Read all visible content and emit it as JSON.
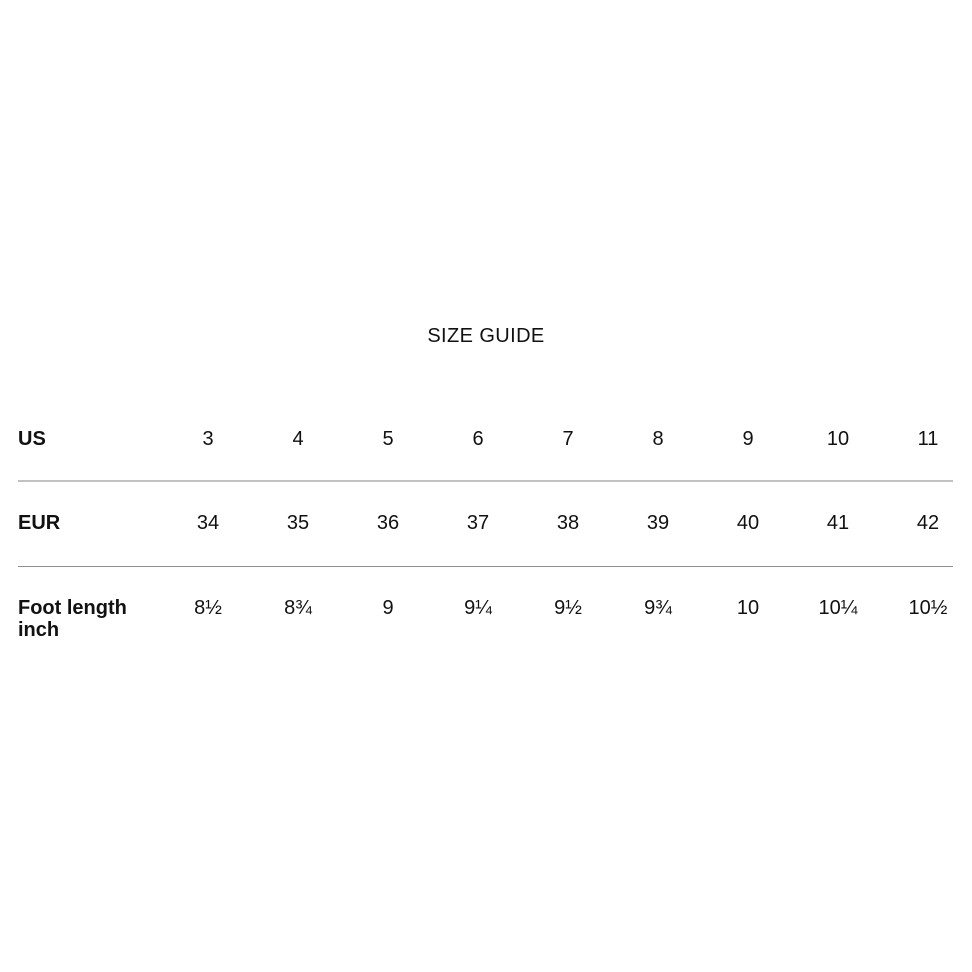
{
  "title": "SIZE GUIDE",
  "colors": {
    "background": "#ffffff",
    "text": "#111111",
    "divider_light": "#c2c2c2",
    "divider_dark": "#8e8e8e"
  },
  "size_table": {
    "rows": [
      {
        "label": "US",
        "values": [
          "3",
          "4",
          "5",
          "6",
          "7",
          "8",
          "9",
          "10",
          "11"
        ]
      },
      {
        "label": "EUR",
        "values": [
          "34",
          "35",
          "36",
          "37",
          "38",
          "39",
          "40",
          "41",
          "42"
        ]
      },
      {
        "label": "Foot length inch",
        "values": [
          "8½",
          "8¾",
          "9",
          "9¼",
          "9½",
          "9¾",
          "10",
          "10¼",
          "10½"
        ]
      }
    ]
  }
}
